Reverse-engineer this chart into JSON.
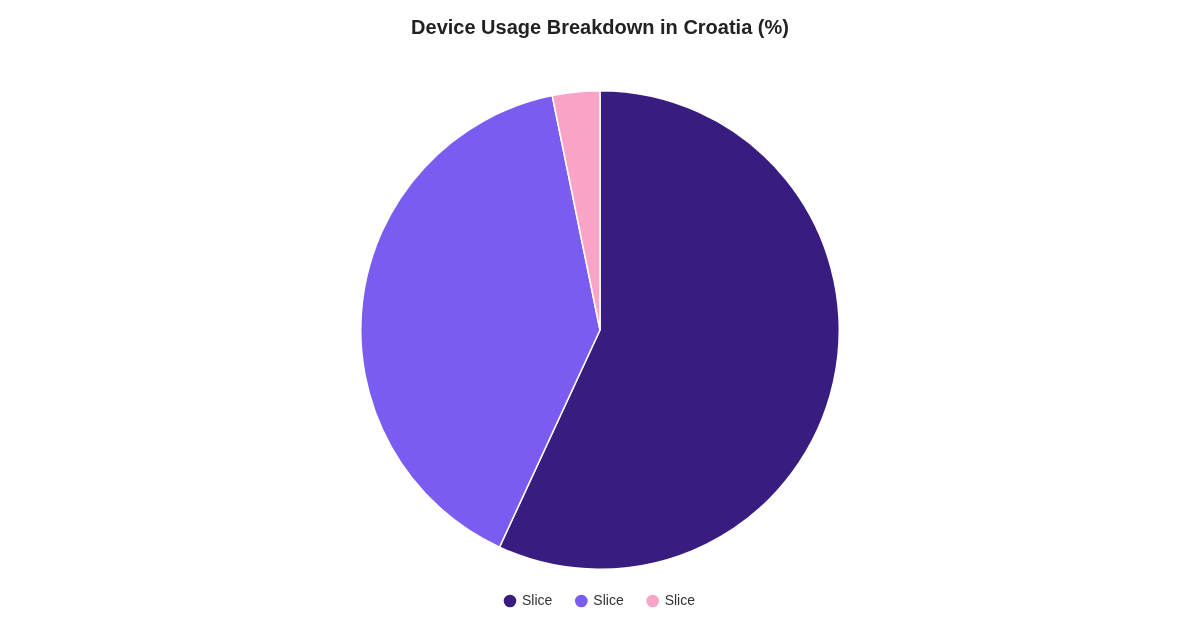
{
  "chart_data": {
    "type": "pie",
    "title": "Device Usage Breakdown in Croatia (%)",
    "categories": [
      "Slice",
      "Slice",
      "Slice"
    ],
    "values": [
      56.9,
      39.9,
      3.2
    ],
    "colors": [
      "#381c80",
      "#7b5cf0",
      "#f9a3c6"
    ],
    "legend": "bottom"
  }
}
